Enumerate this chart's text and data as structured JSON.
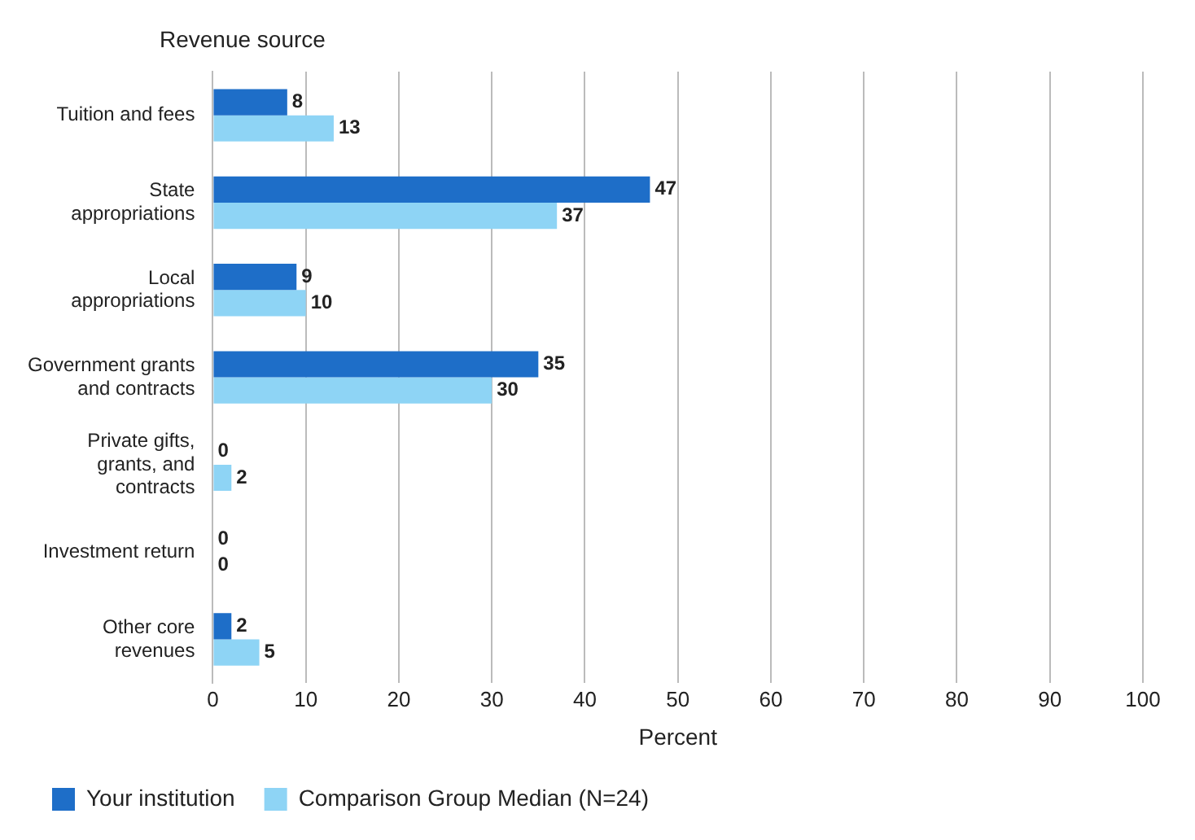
{
  "chart_data": {
    "type": "bar",
    "orientation": "horizontal",
    "ylabel": "Revenue source",
    "xlabel": "Percent",
    "categories": [
      "Tuition and fees",
      "State appropriations",
      "Local appropriations",
      "Government grants and contracts",
      "Private gifts, grants, and contracts",
      "Investment return",
      "Other core revenues"
    ],
    "series": [
      {
        "name": "Your institution",
        "color": "#1e6ec8",
        "values": [
          8,
          47,
          9,
          35,
          0,
          0,
          2
        ]
      },
      {
        "name": "Comparison Group Median (N=24)",
        "color": "#8ed4f5",
        "values": [
          13,
          37,
          10,
          30,
          2,
          0,
          5
        ]
      }
    ],
    "xlim": [
      0,
      100
    ],
    "xticks": [
      0,
      10,
      20,
      30,
      40,
      50,
      60,
      70,
      80,
      90,
      100
    ],
    "grid": "x",
    "legend": "bottom left",
    "data_labels": true
  }
}
